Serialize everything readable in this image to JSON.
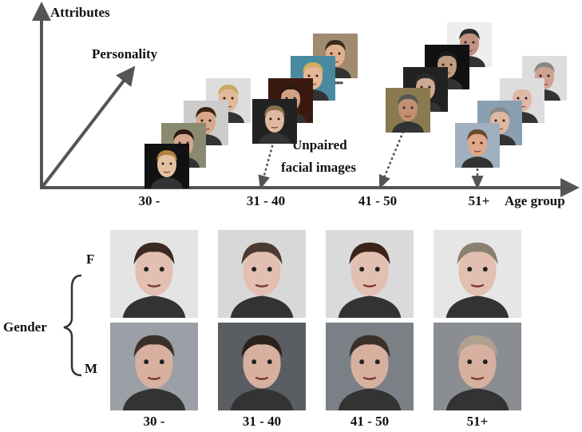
{
  "axes": {
    "y_label": "Attributes",
    "z_label": "Personality",
    "x_label": "Age group",
    "age_groups": [
      "30 -",
      "31 - 40",
      "41 - 50",
      "51+"
    ]
  },
  "annotation": {
    "line1": "Unpaired",
    "line2": "facial images",
    "ellipsis": "••••••"
  },
  "generated": {
    "gender_label": "Gender",
    "rows": [
      "F",
      "M"
    ],
    "columns": [
      "30 -",
      "31 - 40",
      "41 - 50",
      "51+"
    ]
  },
  "colors": {
    "axis": "#555555",
    "text": "#111111"
  }
}
